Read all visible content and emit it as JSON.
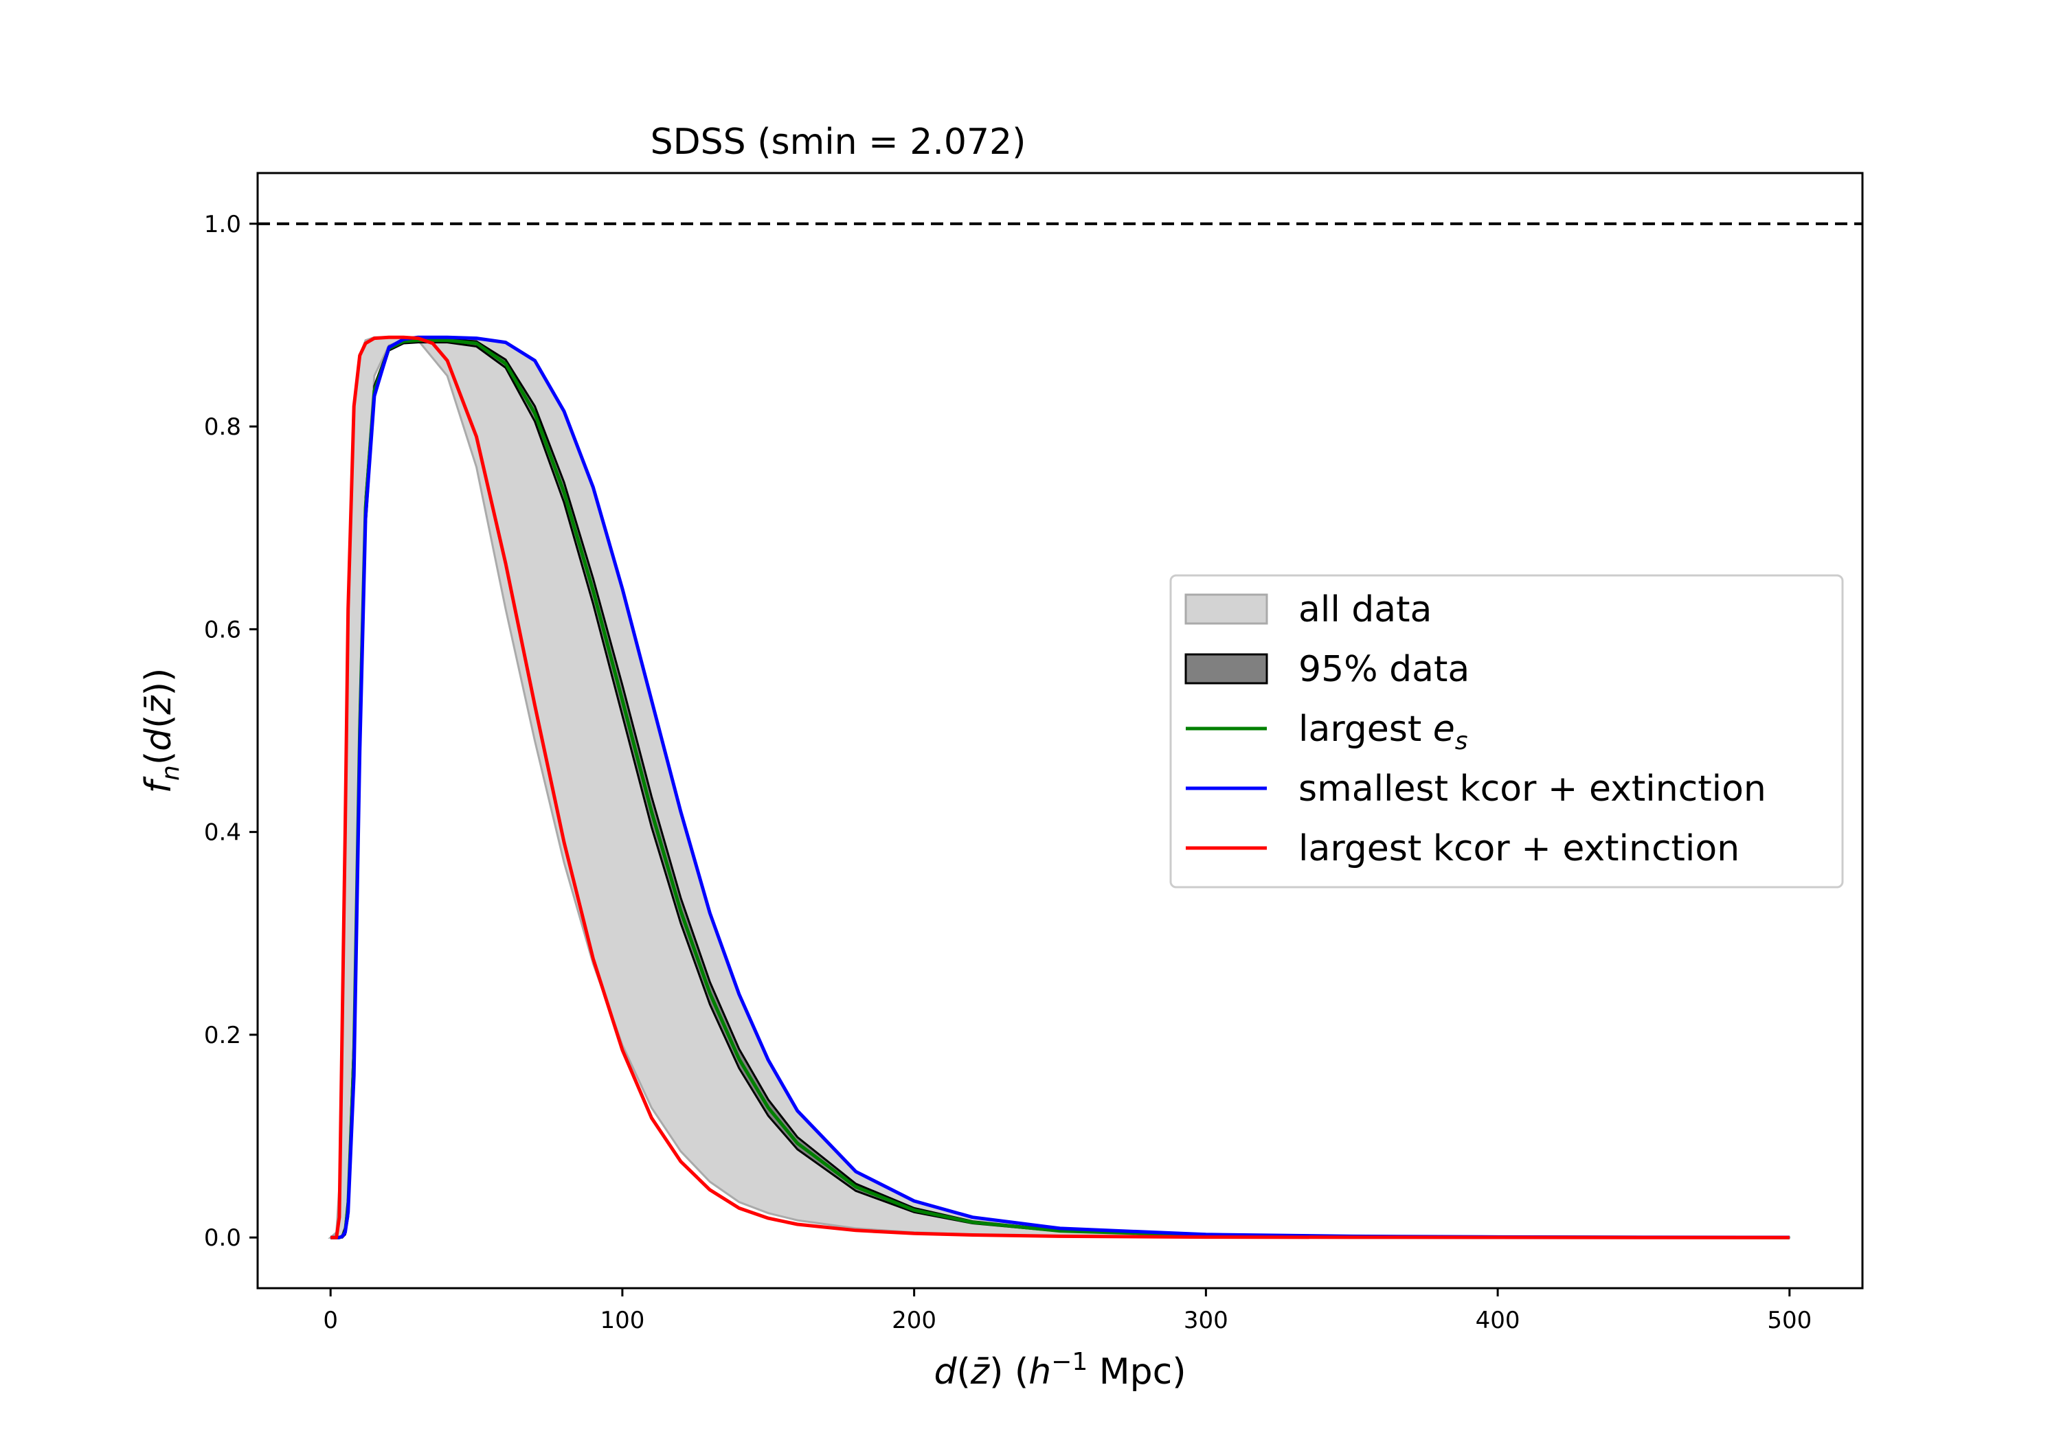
{
  "chart_data": {
    "type": "line",
    "title": "SDSS (smin = 2.072)",
    "xlabel": "d(z̄) (h⁻¹ Mpc)",
    "ylabel": "fn(d(z̄))",
    "xlim": [
      -25,
      525
    ],
    "ylim": [
      -0.05,
      1.05
    ],
    "xticks": [
      0,
      100,
      200,
      300,
      400,
      500
    ],
    "yticks": [
      0.0,
      0.2,
      0.4,
      0.6,
      0.8,
      1.0
    ],
    "grid": false,
    "legend_position": "center-right",
    "reference_line": {
      "y": 1.0,
      "style": "dashed",
      "color": "#000000"
    },
    "bands": [
      {
        "name": "all data",
        "color": "#d3d3d3",
        "edge_color": "#aaaaaa",
        "x": [
          0,
          2,
          3,
          5,
          6,
          8,
          10,
          12,
          15,
          20,
          25,
          30,
          40,
          50,
          60,
          70,
          80,
          90,
          100,
          110,
          120,
          130,
          140,
          150,
          160,
          180,
          200,
          220,
          250,
          300,
          350,
          400,
          450,
          500
        ],
        "lower": [
          0,
          0,
          0,
          0.005,
          0.02,
          0.2,
          0.53,
          0.73,
          0.85,
          0.88,
          0.885,
          0.885,
          0.85,
          0.76,
          0.62,
          0.49,
          0.37,
          0.27,
          0.19,
          0.128,
          0.085,
          0.055,
          0.035,
          0.024,
          0.017,
          0.009,
          0.005,
          0.003,
          0.0015,
          0.0005,
          0.0002,
          0.0001,
          0,
          0
        ],
        "upper": [
          0,
          0.005,
          0.05,
          0.4,
          0.62,
          0.82,
          0.87,
          0.885,
          0.888,
          0.888,
          0.888,
          0.888,
          0.888,
          0.887,
          0.883,
          0.865,
          0.815,
          0.74,
          0.64,
          0.53,
          0.42,
          0.32,
          0.24,
          0.175,
          0.125,
          0.065,
          0.036,
          0.02,
          0.009,
          0.003,
          0.0012,
          0.0005,
          0.0002,
          0.0001
        ]
      },
      {
        "name": "95% data",
        "color": "#808080",
        "edge_color": "#000000",
        "x": [
          0,
          2,
          3,
          4,
          5,
          6,
          8,
          10,
          12,
          15,
          20,
          25,
          30,
          40,
          50,
          60,
          70,
          80,
          90,
          100,
          110,
          120,
          130,
          140,
          150,
          160,
          180,
          200,
          220,
          250,
          300,
          350,
          400,
          450,
          500
        ],
        "lower": [
          0,
          0,
          0,
          0,
          0.003,
          0.02,
          0.15,
          0.47,
          0.7,
          0.83,
          0.875,
          0.882,
          0.883,
          0.883,
          0.879,
          0.858,
          0.805,
          0.725,
          0.625,
          0.515,
          0.405,
          0.31,
          0.23,
          0.167,
          0.12,
          0.087,
          0.046,
          0.025,
          0.014,
          0.006,
          0.002,
          0.0007,
          0.0002,
          0.0001,
          0
        ],
        "upper": [
          0,
          0,
          0,
          0.002,
          0.01,
          0.04,
          0.2,
          0.52,
          0.73,
          0.84,
          0.879,
          0.885,
          0.886,
          0.886,
          0.884,
          0.866,
          0.82,
          0.745,
          0.65,
          0.545,
          0.435,
          0.335,
          0.252,
          0.186,
          0.136,
          0.099,
          0.053,
          0.029,
          0.016,
          0.007,
          0.0025,
          0.0009,
          0.0003,
          0.0001,
          0
        ]
      }
    ],
    "series": [
      {
        "name": "largest e_s",
        "color": "#008000",
        "x": [
          0,
          2,
          3,
          4,
          5,
          6,
          8,
          10,
          12,
          15,
          20,
          25,
          30,
          40,
          50,
          60,
          70,
          80,
          90,
          100,
          110,
          120,
          130,
          140,
          150,
          160,
          180,
          200,
          220,
          250,
          300,
          350,
          400,
          450,
          500
        ],
        "y": [
          0,
          0,
          0,
          0.001,
          0.006,
          0.03,
          0.18,
          0.5,
          0.72,
          0.835,
          0.877,
          0.884,
          0.885,
          0.885,
          0.882,
          0.862,
          0.813,
          0.735,
          0.638,
          0.53,
          0.42,
          0.322,
          0.241,
          0.176,
          0.128,
          0.093,
          0.05,
          0.027,
          0.015,
          0.0065,
          0.0022,
          0.0008,
          0.0003,
          0.0001,
          0
        ]
      },
      {
        "name": "smallest kcor + extinction",
        "color": "#0000ff",
        "x": [
          0,
          2,
          3,
          4,
          5,
          6,
          8,
          10,
          12,
          15,
          20,
          25,
          30,
          40,
          50,
          60,
          70,
          80,
          90,
          100,
          110,
          120,
          130,
          140,
          150,
          160,
          180,
          200,
          220,
          250,
          300,
          350,
          400,
          450,
          500
        ],
        "y": [
          0,
          0,
          0,
          0.001,
          0.005,
          0.025,
          0.16,
          0.48,
          0.71,
          0.83,
          0.878,
          0.886,
          0.888,
          0.888,
          0.887,
          0.883,
          0.865,
          0.815,
          0.74,
          0.64,
          0.53,
          0.42,
          0.32,
          0.24,
          0.175,
          0.125,
          0.065,
          0.036,
          0.02,
          0.009,
          0.003,
          0.0012,
          0.0005,
          0.0002,
          0.0001
        ]
      },
      {
        "name": "largest kcor + extinction",
        "color": "#ff0000",
        "x": [
          0,
          2,
          3,
          5,
          6,
          8,
          10,
          12,
          15,
          20,
          25,
          30,
          35,
          40,
          50,
          60,
          70,
          80,
          90,
          100,
          110,
          120,
          130,
          140,
          150,
          160,
          180,
          200,
          220,
          250,
          300,
          350,
          400,
          450,
          500
        ],
        "y": [
          0,
          0,
          0.02,
          0.4,
          0.62,
          0.82,
          0.87,
          0.882,
          0.887,
          0.888,
          0.888,
          0.887,
          0.882,
          0.865,
          0.79,
          0.665,
          0.525,
          0.39,
          0.275,
          0.185,
          0.118,
          0.075,
          0.047,
          0.029,
          0.019,
          0.013,
          0.007,
          0.004,
          0.0025,
          0.0012,
          0.0004,
          0.0002,
          0.0001,
          0,
          0
        ]
      }
    ]
  }
}
